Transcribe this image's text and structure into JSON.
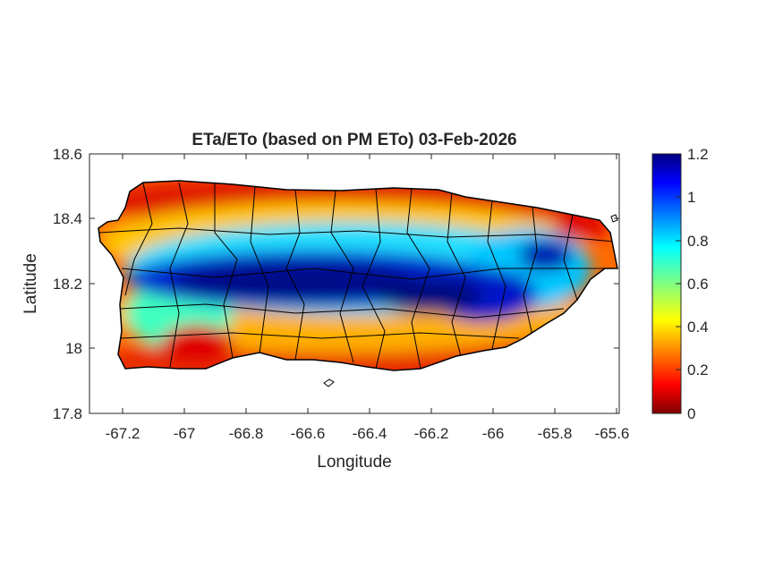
{
  "figure": {
    "title": "ETa/ETo (based on PM ETo) 03-Feb-2026",
    "xlabel": "Longitude",
    "ylabel": "Latitude",
    "x_ticks": [
      "-67.2",
      "-67",
      "-66.8",
      "-66.6",
      "-66.4",
      "-66.2",
      "-66",
      "-65.8",
      "-65.6"
    ],
    "y_ticks": [
      "18.6",
      "18.4",
      "18.2",
      "18",
      "17.8"
    ],
    "colorbar_ticks": [
      "1.2",
      "1",
      "0.8",
      "0.6",
      "0.4",
      "0.2",
      "0"
    ]
  },
  "chart_data": {
    "type": "heatmap",
    "region": "Puerto Rico",
    "variable": "ETa/ETo",
    "x_range": [
      -67.3,
      -65.59
    ],
    "y_range": [
      17.8,
      18.6
    ],
    "color_range": [
      0,
      1.2
    ],
    "colormap": "jet",
    "pattern": "High ratio (about 1.0-1.2) along the central mountain band; low values (0-0.3) along the northern and southern coasts; intermediate values (0.5-0.8) in the transition zones.",
    "municipal_boundaries": true
  },
  "colors": {
    "background": "#ffffff",
    "axis": "#262626",
    "boundary": "#000000"
  }
}
